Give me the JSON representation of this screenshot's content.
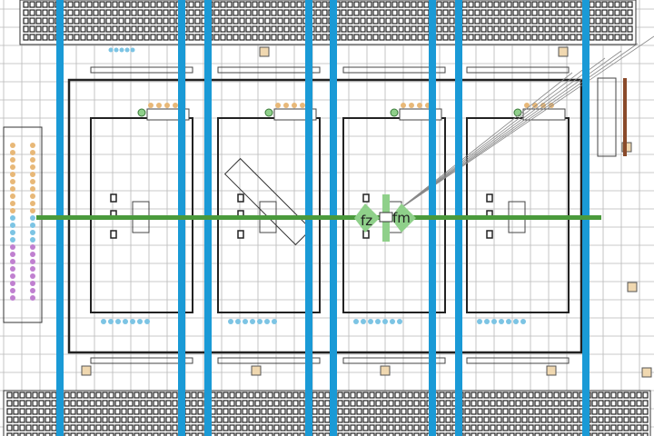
{
  "labels": {
    "fz": "fz",
    "fm": "fm"
  },
  "colors": {
    "column_line": "#1a9ad6",
    "axis_line": "#4a9a3c",
    "axis_marker": "#8fd08a",
    "seat": "#7cc4e4",
    "orange_seat": "#e8b878",
    "purple_seat": "#c080d0",
    "box": "#f0d8b0",
    "grid": "#b8b8b8",
    "wall": "#222222",
    "brown_bar": "#8a4a2a"
  }
}
